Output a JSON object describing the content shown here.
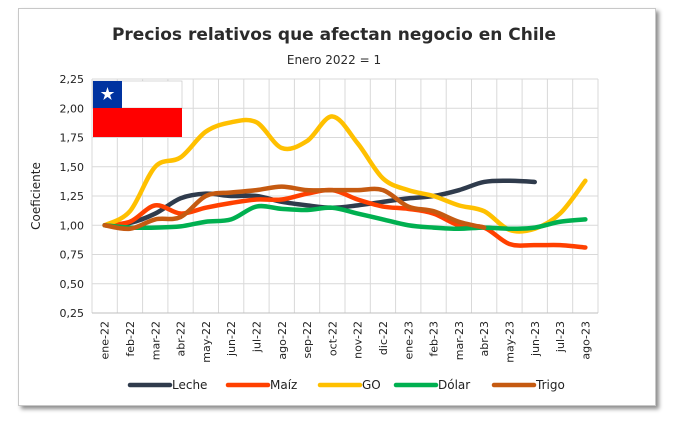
{
  "chart_data": {
    "type": "line",
    "title": "Precios relativos que afectan negocio en Chile",
    "subtitle": "Enero 2022 = 1",
    "xlabel": "",
    "ylabel": "Coeficiente",
    "ylim": [
      0.25,
      2.25
    ],
    "yticks": [
      "0,25",
      "0,50",
      "0,75",
      "1,00",
      "1,25",
      "1,50",
      "1,75",
      "2,00",
      "2,25"
    ],
    "ytick_values": [
      0.25,
      0.5,
      0.75,
      1.0,
      1.25,
      1.5,
      1.75,
      2.0,
      2.25
    ],
    "categories": [
      "ene-22",
      "feb-22",
      "mar-22",
      "abr-22",
      "may-22",
      "jun-22",
      "jul-22",
      "ago-22",
      "sep-22",
      "oct-22",
      "nov-22",
      "dic-22",
      "ene-23",
      "feb-23",
      "mar-23",
      "abr-23",
      "may-23",
      "jun-23",
      "jul-23",
      "ago-23"
    ],
    "grid": true,
    "legend_position": "bottom",
    "series": [
      {
        "name": "Leche",
        "color": "#2f3b4c",
        "values": [
          1.0,
          1.02,
          1.1,
          1.23,
          1.27,
          1.25,
          1.25,
          1.2,
          1.17,
          1.15,
          1.17,
          1.2,
          1.23,
          1.25,
          1.3,
          1.37,
          1.38,
          1.37,
          null,
          null
        ]
      },
      {
        "name": "Maíz",
        "color": "#ff4000",
        "values": [
          1.0,
          1.03,
          1.17,
          1.1,
          1.15,
          1.19,
          1.22,
          1.22,
          1.27,
          1.3,
          1.22,
          1.16,
          1.14,
          1.1,
          1.0,
          0.98,
          0.84,
          0.83,
          0.83,
          0.81
        ]
      },
      {
        "name": "GO",
        "color": "#ffc000",
        "values": [
          1.0,
          1.12,
          1.5,
          1.58,
          1.8,
          1.88,
          1.88,
          1.66,
          1.72,
          1.93,
          1.7,
          1.4,
          1.3,
          1.25,
          1.17,
          1.12,
          0.96,
          0.97,
          1.1,
          1.38
        ]
      },
      {
        "name": "Dólar",
        "color": "#00b050",
        "values": [
          1.0,
          0.98,
          0.98,
          0.99,
          1.03,
          1.05,
          1.16,
          1.14,
          1.13,
          1.15,
          1.1,
          1.05,
          1.0,
          0.98,
          0.97,
          0.98,
          0.97,
          0.98,
          1.03,
          1.05
        ]
      },
      {
        "name": "Trigo",
        "color": "#c55a11",
        "values": [
          1.0,
          0.97,
          1.05,
          1.07,
          1.25,
          1.28,
          1.3,
          1.33,
          1.3,
          1.3,
          1.3,
          1.3,
          1.16,
          1.12,
          1.03,
          0.98,
          null,
          null,
          null,
          null
        ]
      }
    ]
  },
  "flag": {
    "name": "chile-flag",
    "colors": {
      "blue": "#0033a0",
      "white": "#ffffff",
      "red": "#ff0000"
    }
  },
  "colors": {
    "grid": "#d9d9d9",
    "axis": "#bfbfbf"
  }
}
